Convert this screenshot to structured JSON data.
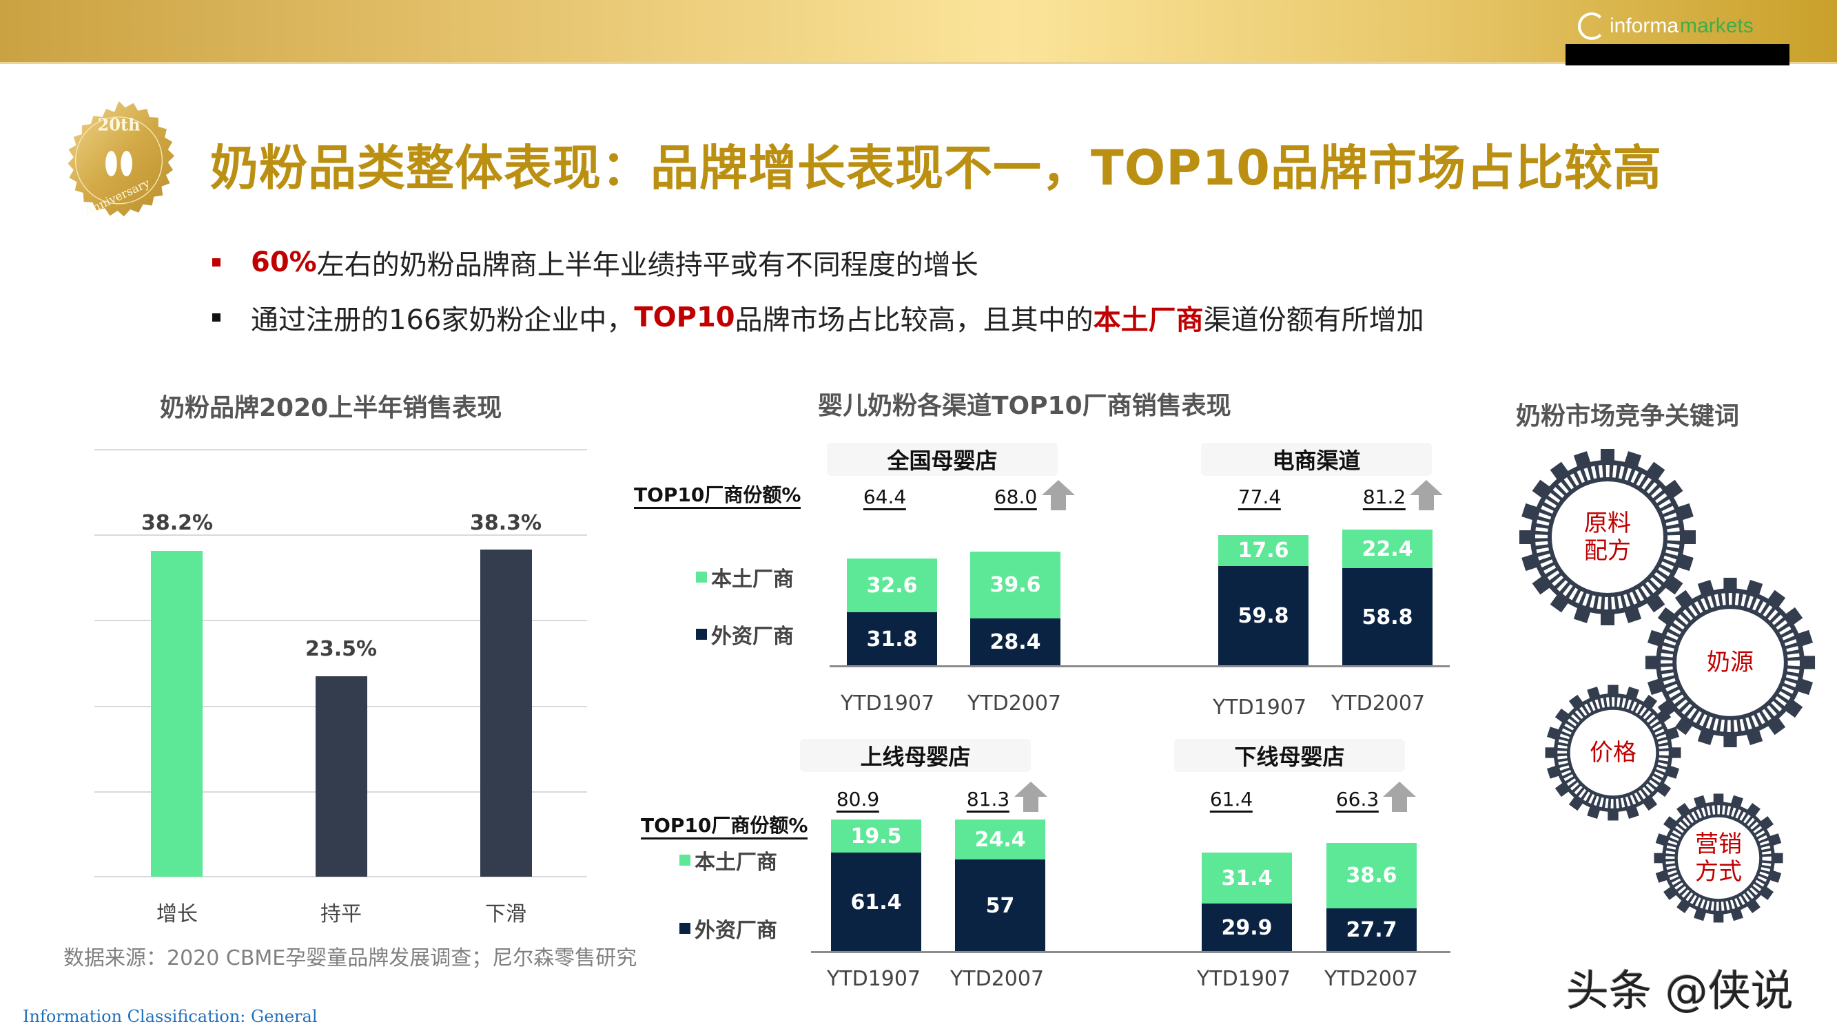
{
  "header": {
    "logo_text_1": "informa",
    "logo_text_2": "markets",
    "medal": {
      "top": "20th",
      "bottom": "Anniversary",
      "icon": "footprints-icon"
    }
  },
  "title": "奶粉品类整体表现：品牌增长表现不一，TOP10品牌市场占比较高",
  "bullets": [
    {
      "highlight": "60%",
      "text": "左右的奶粉品牌商上半年业绩持平或有不同程度的增长"
    },
    {
      "pre": "通过注册的166家奶粉企业中，",
      "highlight1": "TOP10",
      "mid": "品牌市场占比较高，且其中的",
      "highlight2": "本土厂商",
      "post": "渠道份额有所增加"
    }
  ],
  "colors": {
    "title_gold": "#bb9012",
    "highlight_red": "#c00000",
    "green": "#5ce896",
    "navy": "#0b2343",
    "dark_bar": "#333d4e",
    "arrow_gray": "#a6a6a6"
  },
  "chart_data": [
    {
      "type": "bar",
      "title": "奶粉品牌2020上半年销售表现",
      "categories": [
        "增长",
        "持平",
        "下滑"
      ],
      "values": [
        38.2,
        23.5,
        38.3
      ],
      "value_labels": [
        "38.2%",
        "23.5%",
        "38.3%"
      ],
      "bar_colors": [
        "#5ce896",
        "#333d4e",
        "#333d4e"
      ],
      "xlabel": "",
      "ylabel": "",
      "ylim": [
        0,
        50
      ],
      "grid": true
    },
    {
      "type": "bar",
      "stacked": true,
      "title": "婴儿奶粉各渠道TOP10厂商销售表现",
      "share_label": "TOP10厂商份额%",
      "legend": [
        "本土厂商",
        "外资厂商"
      ],
      "panels": [
        {
          "name": "全国母婴店",
          "categories": [
            "YTD1907",
            "YTD2007"
          ],
          "totals": [
            "64.4",
            "68.0"
          ],
          "series": [
            {
              "name": "本土厂商",
              "values": [
                32.6,
                39.6
              ]
            },
            {
              "name": "外资厂商",
              "values": [
                31.8,
                28.4
              ]
            }
          ],
          "trend": "up"
        },
        {
          "name": "电商渠道",
          "categories": [
            "YTD1907",
            "YTD2007"
          ],
          "totals": [
            "77.4",
            "81.2"
          ],
          "series": [
            {
              "name": "本土厂商",
              "values": [
                17.6,
                22.4
              ]
            },
            {
              "name": "外资厂商",
              "values": [
                59.8,
                58.8
              ]
            }
          ],
          "trend": "up"
        },
        {
          "name": "上线母婴店",
          "categories": [
            "YTD1907",
            "YTD2007"
          ],
          "totals": [
            "80.9",
            "81.3"
          ],
          "series": [
            {
              "name": "本土厂商",
              "values": [
                19.5,
                24.4
              ]
            },
            {
              "name": "外资厂商",
              "values": [
                61.4,
                57.0
              ]
            }
          ],
          "trend": "up"
        },
        {
          "name": "下线母婴店",
          "categories": [
            "YTD1907",
            "YTD2007"
          ],
          "totals": [
            "61.4",
            "66.3"
          ],
          "series": [
            {
              "name": "本土厂商",
              "values": [
                31.4,
                38.6
              ]
            },
            {
              "name": "外资厂商",
              "values": [
                29.9,
                27.7
              ]
            }
          ],
          "trend": "up"
        }
      ]
    }
  ],
  "keywords": {
    "title": "奶粉市场竞争关键词",
    "items": [
      {
        "line1": "原料",
        "line2": "配方"
      },
      {
        "line1": "奶源",
        "line2": ""
      },
      {
        "line1": "价格",
        "line2": ""
      },
      {
        "line1": "营销",
        "line2": "方式"
      }
    ]
  },
  "source": "数据来源：2020 CBME孕婴童品牌发展调查；尼尔森零售研究",
  "classification": "Information Classification: General",
  "watermark": "头条 @侠说"
}
